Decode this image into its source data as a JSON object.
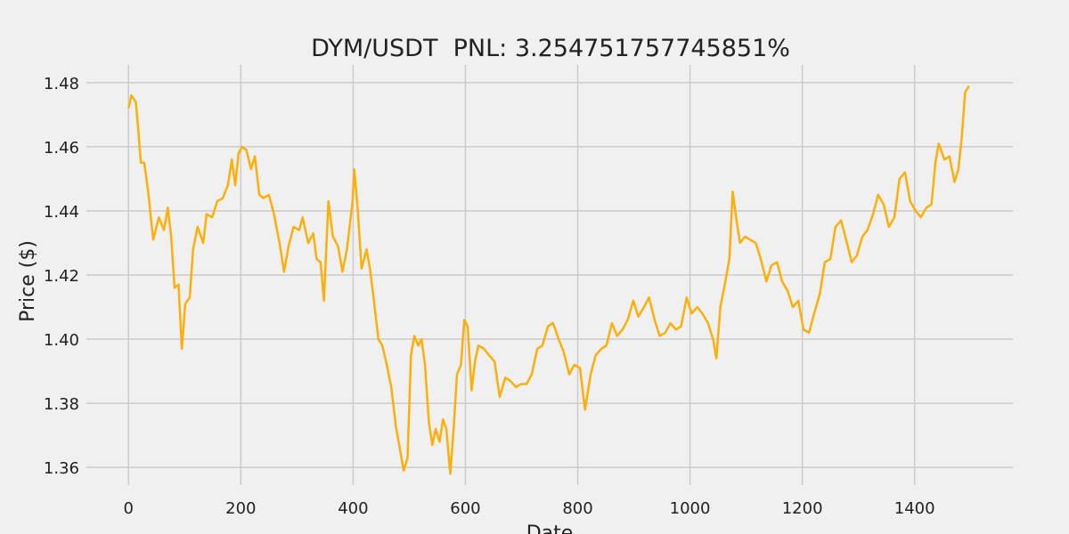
{
  "chart_data": {
    "type": "line",
    "title": "DYM/USDT  PNL: 3.254751757745851%",
    "x_label": "Date",
    "y_label": "Price ($)",
    "xlim": [
      -75,
      1575
    ],
    "ylim": [
      1.3545,
      1.4855
    ],
    "xticks": [
      0,
      200,
      400,
      600,
      800,
      1000,
      1200,
      1400
    ],
    "yticks": [
      1.36,
      1.38,
      {
        "value": 1.4,
        "label": "1.40"
      },
      1.42,
      1.44,
      1.46,
      1.48
    ],
    "grid": true,
    "x": [
      0,
      5,
      13,
      17,
      22,
      28,
      35,
      44,
      54,
      63,
      70,
      76,
      82,
      89,
      95,
      101,
      109,
      115,
      123,
      133,
      139,
      149,
      158,
      168,
      177,
      184,
      190,
      196,
      202,
      210,
      218,
      225,
      233,
      240,
      250,
      259,
      269,
      277,
      285,
      294,
      304,
      310,
      320,
      329,
      335,
      342,
      348,
      356,
      364,
      373,
      381,
      389,
      399,
      402,
      408,
      415,
      424,
      430,
      437,
      445,
      452,
      460,
      468,
      476,
      484,
      490,
      497,
      503,
      509,
      516,
      522,
      528,
      535,
      541,
      547,
      554,
      560,
      566,
      573,
      579,
      585,
      592,
      598,
      604,
      611,
      617,
      623,
      633,
      642,
      652,
      661,
      671,
      680,
      690,
      699,
      709,
      718,
      728,
      737,
      747,
      756,
      766,
      775,
      785,
      794,
      804,
      813,
      823,
      832,
      842,
      851,
      861,
      870,
      880,
      889,
      899,
      908,
      918,
      927,
      937,
      946,
      956,
      965,
      975,
      984,
      994,
      1003,
      1013,
      1022,
      1032,
      1041,
      1047,
      1054,
      1063,
      1070,
      1076,
      1082,
      1089,
      1098,
      1107,
      1117,
      1126,
      1136,
      1145,
      1155,
      1164,
      1174,
      1183,
      1193,
      1202,
      1212,
      1221,
      1231,
      1240,
      1250,
      1259,
      1269,
      1278,
      1288,
      1297,
      1307,
      1316,
      1326,
      1335,
      1345,
      1354,
      1364,
      1373,
      1383,
      1392,
      1402,
      1411,
      1421,
      1430,
      1437,
      1443,
      1453,
      1462,
      1471,
      1478,
      1484,
      1490,
      1497
    ],
    "series": [
      {
        "color": "#fcaf0a",
        "values": [
          1.472,
          1.476,
          1.474,
          1.466,
          1.455,
          1.455,
          1.446,
          1.431,
          1.438,
          1.434,
          1.441,
          1.432,
          1.416,
          1.417,
          1.397,
          1.411,
          1.413,
          1.428,
          1.435,
          1.43,
          1.439,
          1.438,
          1.443,
          1.444,
          1.448,
          1.456,
          1.448,
          1.458,
          1.46,
          1.459,
          1.453,
          1.457,
          1.445,
          1.444,
          1.445,
          1.439,
          1.43,
          1.421,
          1.429,
          1.435,
          1.434,
          1.438,
          1.43,
          1.433,
          1.425,
          1.424,
          1.412,
          1.443,
          1.432,
          1.429,
          1.421,
          1.428,
          1.443,
          1.453,
          1.441,
          1.422,
          1.428,
          1.422,
          1.412,
          1.4,
          1.398,
          1.392,
          1.385,
          1.373,
          1.365,
          1.359,
          1.363,
          1.395,
          1.401,
          1.398,
          1.4,
          1.392,
          1.374,
          1.367,
          1.372,
          1.368,
          1.375,
          1.372,
          1.358,
          1.372,
          1.389,
          1.392,
          1.406,
          1.404,
          1.384,
          1.393,
          1.398,
          1.397,
          1.395,
          1.393,
          1.382,
          1.388,
          1.387,
          1.385,
          1.386,
          1.386,
          1.389,
          1.397,
          1.398,
          1.404,
          1.405,
          1.4,
          1.396,
          1.389,
          1.392,
          1.391,
          1.378,
          1.389,
          1.395,
          1.397,
          1.398,
          1.405,
          1.401,
          1.403,
          1.406,
          1.412,
          1.407,
          1.41,
          1.413,
          1.406,
          1.401,
          1.402,
          1.405,
          1.403,
          1.404,
          1.413,
          1.408,
          1.41,
          1.408,
          1.405,
          1.4,
          1.394,
          1.41,
          1.418,
          1.425,
          1.446,
          1.438,
          1.43,
          1.432,
          1.431,
          1.43,
          1.425,
          1.418,
          1.423,
          1.424,
          1.418,
          1.415,
          1.41,
          1.412,
          1.403,
          1.402,
          1.408,
          1.414,
          1.424,
          1.425,
          1.435,
          1.437,
          1.431,
          1.424,
          1.426,
          1.432,
          1.434,
          1.439,
          1.445,
          1.442,
          1.435,
          1.438,
          1.45,
          1.452,
          1.443,
          1.44,
          1.438,
          1.441,
          1.442,
          1.455,
          1.461,
          1.456,
          1.457,
          1.449,
          1.453,
          1.463,
          1.477,
          1.479
        ]
      }
    ]
  }
}
